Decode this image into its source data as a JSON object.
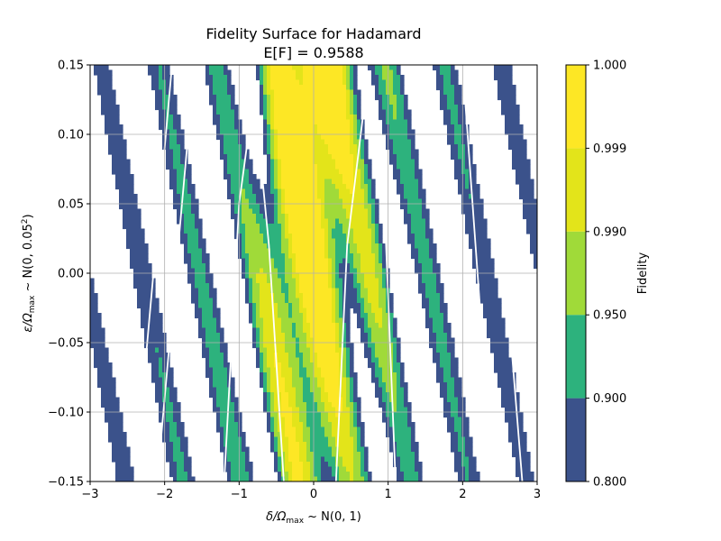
{
  "chart_data": {
    "type": "contour",
    "title": "Fidelity Surface for Hadamard",
    "subtitle": "E[F] = 0.9588",
    "xlabel_parts": {
      "sym": "δ/Ω",
      "sub": "max",
      "rest": " ~ N(0, 1)"
    },
    "ylabel_parts": {
      "sym": "ε/Ω",
      "sub": "max",
      "rest": " ~ N(0, 0.05",
      "sup": "2",
      "end": ")"
    },
    "xlim": [
      -3,
      3
    ],
    "ylim": [
      -0.15,
      0.15
    ],
    "xticks": [
      -3,
      -2,
      -1,
      0,
      1,
      2,
      3
    ],
    "xtick_labels": [
      "−3",
      "−2",
      "−1",
      "0",
      "1",
      "2",
      "3"
    ],
    "yticks": [
      -0.15,
      -0.1,
      -0.05,
      0.0,
      0.05,
      0.1,
      0.15
    ],
    "ytick_labels": [
      "−0.15",
      "−0.10",
      "−0.05",
      "0.00",
      "0.05",
      "0.10",
      "0.15"
    ],
    "grid": true,
    "levels": [
      0.8,
      0.9,
      0.95,
      0.99,
      0.999,
      1.0
    ],
    "level_colors": [
      "#3b528b",
      "#2db27d",
      "#a0da39",
      "#e3e41a",
      "#fde725"
    ],
    "colorbar_label": "Fidelity",
    "colorbar_tick_labels": [
      "0.800",
      "0.900",
      "0.950",
      "0.990",
      "0.999",
      "1.000"
    ],
    "contour_line_color": "#ffffff"
  }
}
